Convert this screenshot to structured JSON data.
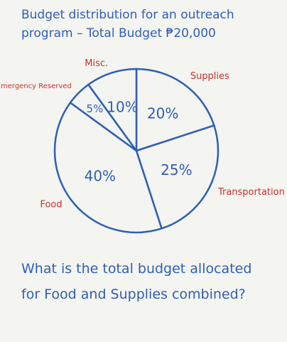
{
  "chart_data": {
    "type": "pie",
    "title": "Budget distribution for an outreach program – Total Budget ₱20,000",
    "categories": [
      "Supplies",
      "Transportation",
      "Food",
      "Emergency Reserved",
      "Misc."
    ],
    "values": [
      20,
      25,
      40,
      5,
      10
    ],
    "value_labels": [
      "20%",
      "25%",
      "40%",
      "5%",
      "10%"
    ],
    "color": "#2f5fb3",
    "label_color": "#c8322d"
  },
  "question": "What is the total budget allocated for Food and Supplies combined?"
}
